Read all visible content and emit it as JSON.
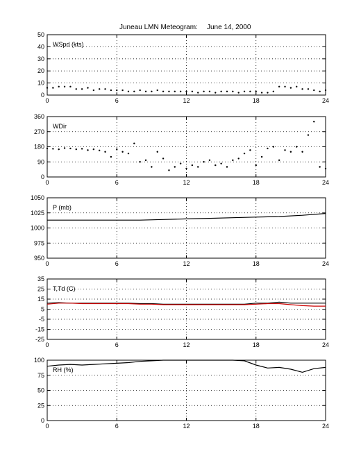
{
  "title": "Juneau LMN Meteogram:",
  "date": "June 14, 2000",
  "chart_data": [
    {
      "type": "scatter",
      "label": "WSpd (kts)",
      "ylim": [
        0,
        50
      ],
      "yticks": [
        0,
        10,
        20,
        30,
        40,
        50
      ],
      "xlim": [
        0,
        24
      ],
      "xticks": [
        0,
        6,
        12,
        18,
        24
      ],
      "grid": true,
      "series": [
        {
          "color": "#000000",
          "x": [
            0,
            0.5,
            1,
            1.5,
            2,
            2.5,
            3,
            3.5,
            4,
            4.5,
            5,
            5.5,
            6,
            6.5,
            7,
            7.5,
            8,
            8.5,
            9,
            9.5,
            10,
            10.5,
            11,
            11.5,
            12,
            12.5,
            13,
            13.5,
            14,
            14.5,
            15,
            15.5,
            16,
            16.5,
            17,
            17.5,
            18,
            18.5,
            19,
            19.5,
            20,
            20.5,
            21,
            21.5,
            22,
            22.5,
            23,
            23.5,
            24
          ],
          "values": [
            6,
            6,
            7,
            7,
            7,
            5,
            5,
            6,
            4,
            5,
            5,
            4,
            4,
            4,
            3,
            3,
            4,
            3,
            3,
            4,
            3,
            3,
            3,
            3,
            3,
            3,
            2,
            3,
            3,
            2,
            3,
            3,
            3,
            2,
            3,
            3,
            3,
            2,
            2,
            3,
            7,
            7,
            6,
            7,
            5,
            5,
            4,
            3,
            4
          ]
        }
      ]
    },
    {
      "type": "scatter",
      "label": "WDir",
      "ylim": [
        0,
        360
      ],
      "yticks": [
        0,
        90,
        180,
        270,
        360
      ],
      "xlim": [
        0,
        24
      ],
      "xticks": [
        0,
        6,
        12,
        18,
        24
      ],
      "grid": true,
      "series": [
        {
          "color": "#000000",
          "x": [
            0,
            0.5,
            1,
            1.5,
            2,
            2.5,
            3,
            3.5,
            4,
            4.5,
            5,
            5.5,
            6,
            6.5,
            7,
            7.5,
            8,
            8.5,
            9,
            9.5,
            10,
            10.5,
            11,
            11.5,
            12,
            12.5,
            13,
            13.5,
            14,
            14.5,
            15,
            15.5,
            16,
            16.5,
            17,
            17.5,
            18,
            18.5,
            19,
            19.5,
            20,
            20.5,
            21,
            21.5,
            22,
            22.5,
            23,
            23.5,
            24
          ],
          "values": [
            170,
            168,
            165,
            172,
            170,
            165,
            168,
            160,
            165,
            158,
            150,
            120,
            165,
            150,
            140,
            200,
            90,
            100,
            60,
            150,
            110,
            40,
            60,
            80,
            50,
            70,
            60,
            90,
            100,
            70,
            80,
            60,
            100,
            110,
            140,
            160,
            70,
            120,
            170,
            180,
            100,
            160,
            150,
            180,
            150,
            250,
            330,
            60,
            50
          ]
        }
      ]
    },
    {
      "type": "line",
      "label": "P (mb)",
      "ylim": [
        950,
        1050
      ],
      "yticks": [
        950,
        975,
        1000,
        1025,
        1050
      ],
      "xlim": [
        0,
        24
      ],
      "xticks": [
        0,
        6,
        12,
        18,
        24
      ],
      "grid": true,
      "series": [
        {
          "color": "#000000",
          "x": [
            0,
            2,
            4,
            6,
            8,
            10,
            12,
            14,
            16,
            18,
            20,
            22,
            24
          ],
          "values": [
            1013,
            1013,
            1013,
            1013,
            1013,
            1014,
            1015,
            1016,
            1017,
            1018,
            1019,
            1021,
            1024
          ]
        }
      ]
    },
    {
      "type": "line",
      "label": "T,Td (C)",
      "ylim": [
        -25,
        35
      ],
      "yticks": [
        -25,
        -15,
        -5,
        5,
        15,
        25,
        35
      ],
      "xlim": [
        0,
        24
      ],
      "xticks": [
        0,
        6,
        12,
        18,
        24
      ],
      "grid": true,
      "series": [
        {
          "color": "#000000",
          "x": [
            0,
            1,
            2,
            3,
            4,
            5,
            6,
            7,
            8,
            9,
            10,
            11,
            12,
            13,
            14,
            15,
            16,
            17,
            18,
            19,
            20,
            21,
            22,
            23,
            24
          ],
          "values": [
            11,
            11.5,
            11,
            11,
            11,
            11,
            11,
            11,
            10.5,
            10.5,
            10,
            10,
            10,
            10,
            10,
            10,
            10,
            10,
            11,
            11,
            12,
            11,
            11,
            11,
            11
          ]
        },
        {
          "color": "#cc0000",
          "x": [
            0,
            1,
            2,
            3,
            4,
            5,
            6,
            7,
            8,
            9,
            10,
            11,
            12,
            13,
            14,
            15,
            16,
            17,
            18,
            19,
            20,
            21,
            22,
            23,
            24
          ],
          "values": [
            10,
            11,
            11,
            10.5,
            10.5,
            10.5,
            10.5,
            10.5,
            10,
            10,
            9.5,
            9.5,
            9.5,
            9.5,
            9.5,
            9.5,
            9.5,
            9.5,
            10,
            10.5,
            10.5,
            9.5,
            8.5,
            8,
            8
          ]
        }
      ]
    },
    {
      "type": "line",
      "label": "RH (%)",
      "ylim": [
        0,
        100
      ],
      "yticks": [
        0,
        25,
        50,
        75,
        100
      ],
      "xlim": [
        0,
        24
      ],
      "xticks": [
        0,
        6,
        12,
        18,
        24
      ],
      "grid": true,
      "series": [
        {
          "color": "#000000",
          "x": [
            0,
            1,
            2,
            3,
            4,
            5,
            6,
            7,
            8,
            9,
            10,
            11,
            12,
            13,
            14,
            15,
            16,
            17,
            18,
            19,
            20,
            21,
            22,
            23,
            24
          ],
          "values": [
            90,
            92,
            93,
            92,
            93,
            94,
            95,
            96,
            98,
            99,
            100,
            100,
            100,
            100,
            100,
            100,
            100,
            99,
            92,
            87,
            88,
            85,
            80,
            86,
            88
          ]
        }
      ]
    }
  ]
}
